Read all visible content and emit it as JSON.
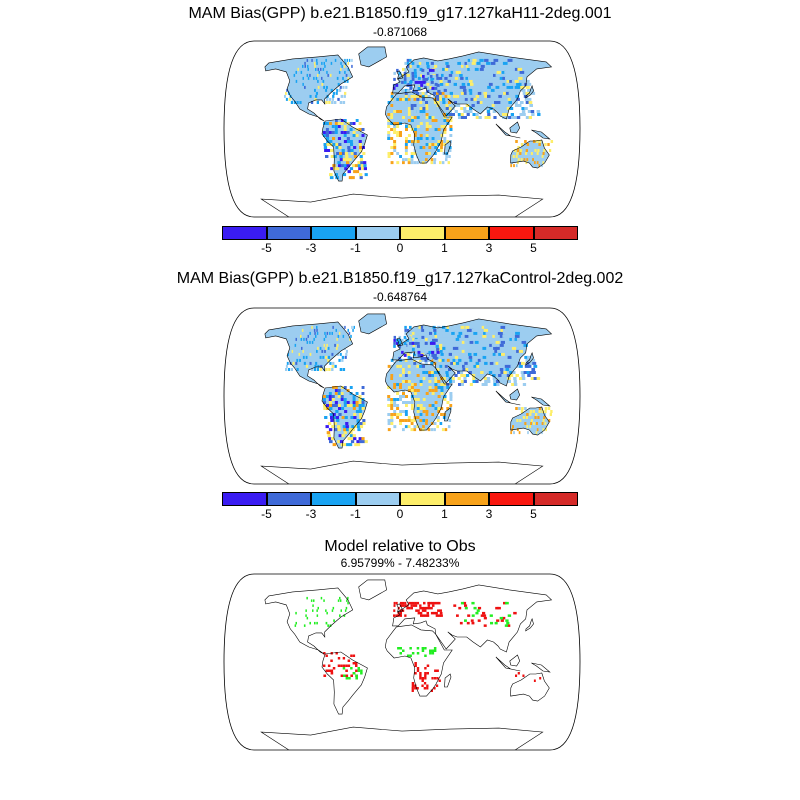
{
  "panels": [
    {
      "title": "MAM Bias(GPP) b.e21.B1850.f19_g17.127kaH11-2deg.001",
      "subtitle": "-0.871068"
    },
    {
      "title": "MAM Bias(GPP) b.e21.B1850.f19_g17.127kaControl-2deg.002",
      "subtitle": "-0.648764"
    },
    {
      "title": "Model relative to Obs",
      "subtitle": "6.95799% - 7.48233%"
    }
  ],
  "colorbar": {
    "colors": [
      "#3a1cf2",
      "#3f6ad8",
      "#19a3f2",
      "#9ccdf0",
      "#fdee6a",
      "#f7a21a",
      "#f9170f",
      "#d52a28"
    ],
    "tick_labels": [
      "-5",
      "-3",
      "-1",
      "0",
      "1",
      "3",
      "5"
    ]
  },
  "significance_colors": {
    "better": "#22ee22",
    "worse": "#ee1111"
  }
}
